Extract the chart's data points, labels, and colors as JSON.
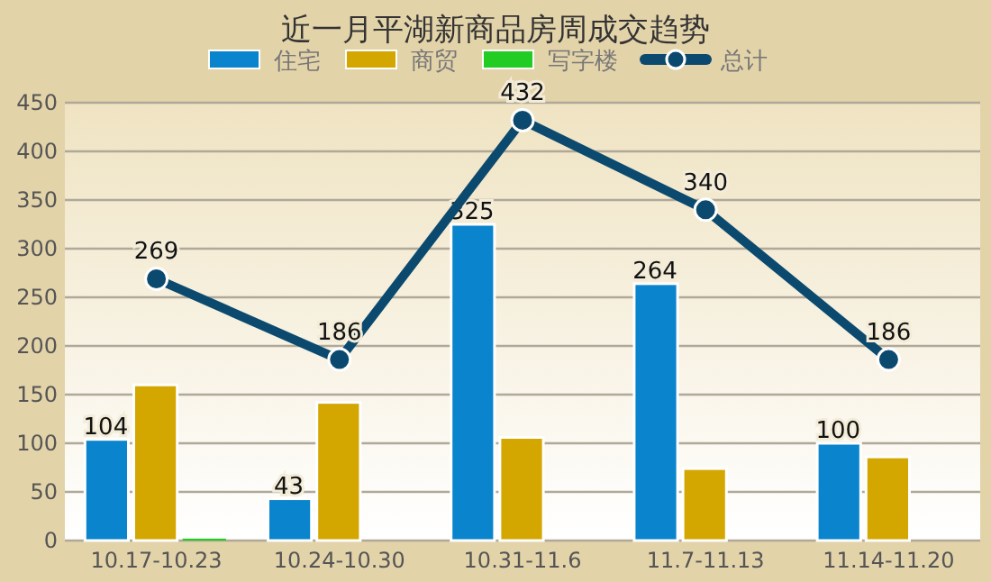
{
  "chart_data": {
    "type": "bar",
    "title": "近一月平湖新商品房周成交趋势",
    "categories": [
      "10.17-10.23",
      "10.24-10.30",
      "10.31-11.6",
      "11.7-11.13",
      "11.14-11.20"
    ],
    "series": [
      {
        "name": "住宅",
        "color": "#0a84cc",
        "values": [
          104,
          43,
          325,
          264,
          100
        ],
        "value_labels": [
          "104",
          "43",
          "325",
          "264",
          "100"
        ]
      },
      {
        "name": "商贸",
        "color": "#d4a600",
        "values": [
          160,
          142,
          106,
          74,
          86
        ]
      },
      {
        "name": "写字楼",
        "color": "#22cc22",
        "values": [
          2,
          null,
          null,
          null,
          null
        ]
      },
      {
        "name": "总计",
        "type": "line",
        "color": "#0b4a6e",
        "values": [
          269,
          186,
          432,
          340,
          186
        ],
        "value_labels": [
          "269",
          "186",
          "432",
          "340",
          "186"
        ],
        "marker": "circle"
      }
    ],
    "ylim": [
      0,
      450
    ],
    "yticks": [
      0,
      50,
      100,
      150,
      200,
      250,
      300,
      350,
      400,
      450
    ],
    "grid": "y",
    "legend": "top"
  }
}
